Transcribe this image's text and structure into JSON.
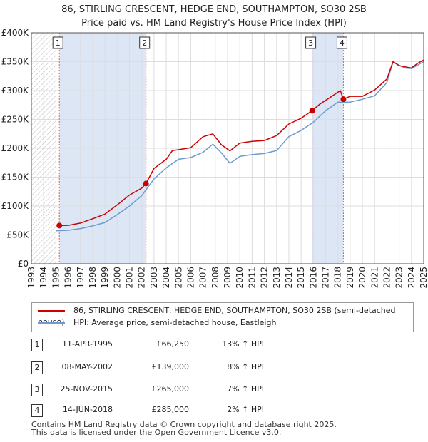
{
  "title": {
    "line1": "86, STIRLING CRESCENT, HEDGE END, SOUTHAMPTON, SO30 2SB",
    "line2": "Price paid vs. HM Land Registry's House Price Index (HPI)"
  },
  "chart_data": {
    "type": "line",
    "title": "86, STIRLING CRESCENT, HEDGE END, SOUTHAMPTON, SO30 2SB — Price paid vs. HM Land Registry's House Price Index (HPI)",
    "xlim": [
      1993.0,
      2025.0
    ],
    "ylim": [
      0,
      400000
    ],
    "x_ticks": [
      "1993",
      "1994",
      "1995",
      "1996",
      "1997",
      "1998",
      "1999",
      "2000",
      "2001",
      "2002",
      "2003",
      "2004",
      "2005",
      "2006",
      "2007",
      "2008",
      "2009",
      "2010",
      "2011",
      "2012",
      "2013",
      "2014",
      "2015",
      "2016",
      "2017",
      "2018",
      "2019",
      "2020",
      "2021",
      "2022",
      "2023",
      "2024",
      "2025"
    ],
    "y_ticks": [
      {
        "value": 0,
        "label": "£0"
      },
      {
        "value": 50000,
        "label": "£50K"
      },
      {
        "value": 100000,
        "label": "£100K"
      },
      {
        "value": 150000,
        "label": "£150K"
      },
      {
        "value": 200000,
        "label": "£200K"
      },
      {
        "value": 250000,
        "label": "£250K"
      },
      {
        "value": 300000,
        "label": "£300K"
      },
      {
        "value": 350000,
        "label": "£350K"
      },
      {
        "value": 400000,
        "label": "£400K"
      }
    ],
    "grid": true,
    "colors": {
      "property": "#cc0000",
      "hpi": "#6d9bd0",
      "band": "#dce6f5",
      "marker_line": "#e06060",
      "grid": "#dddddd"
    },
    "shaded_ranges": [
      [
        1995.28,
        2002.35
      ],
      [
        2015.9,
        2018.45
      ]
    ],
    "hatched_range": [
      1993.0,
      1995.0
    ],
    "series": [
      {
        "name": "86, STIRLING CRESCENT, HEDGE END, SOUTHAMPTON, SO30 2SB (semi-detached house)",
        "color": "#cc0000",
        "x": [
          1995.28,
          1996.0,
          1997.0,
          1998.0,
          1999.0,
          2000.0,
          2001.0,
          2002.0,
          2002.35,
          2003.0,
          2004.0,
          2004.5,
          2005.0,
          2006.0,
          2007.0,
          2007.8,
          2008.5,
          2009.2,
          2010.0,
          2011.0,
          2012.0,
          2013.0,
          2014.0,
          2015.0,
          2015.9,
          2016.5,
          2017.5,
          2018.2,
          2018.45,
          2019.0,
          2020.0,
          2021.0,
          2022.0,
          2022.5,
          2023.0,
          2023.5,
          2024.0,
          2024.5,
          2025.0
        ],
        "y": [
          66250,
          66500,
          70500,
          78000,
          86000,
          102000,
          119000,
          131000,
          139000,
          165000,
          181000,
          196000,
          197500,
          201000,
          220000,
          225000,
          206000,
          195500,
          209000,
          212000,
          213500,
          222000,
          242000,
          252000,
          265000,
          276000,
          290000,
          300000,
          285000,
          290000,
          290000,
          301000,
          320000,
          350000,
          343000,
          341000,
          339000,
          347000,
          353000
        ]
      },
      {
        "name": "HPI: Average price, semi-detached house, Eastleigh",
        "color": "#6d9bd0",
        "x": [
          1995.0,
          1996.0,
          1997.0,
          1998.0,
          1999.0,
          2000.0,
          2001.0,
          2002.0,
          2003.0,
          2004.0,
          2005.0,
          2006.0,
          2007.0,
          2007.8,
          2008.5,
          2009.2,
          2010.0,
          2011.0,
          2012.0,
          2013.0,
          2014.0,
          2015.0,
          2016.0,
          2017.0,
          2018.0,
          2019.0,
          2020.0,
          2021.0,
          2022.0,
          2022.5,
          2023.0,
          2023.5,
          2024.0,
          2024.5,
          2025.0
        ],
        "y": [
          57000,
          58000,
          61000,
          65500,
          71500,
          85000,
          100000,
          118000,
          147000,
          166000,
          181000,
          184000,
          193000,
          207000,
          192000,
          174000,
          186000,
          189000,
          191000,
          196000,
          220000,
          231000,
          245000,
          265000,
          280000,
          280000,
          285000,
          291000,
          314000,
          350000,
          344000,
          339000,
          338000,
          344000,
          350000
        ]
      }
    ],
    "transactions": [
      {
        "num": "1",
        "x": 1995.28,
        "price": 66250
      },
      {
        "num": "2",
        "x": 2002.35,
        "price": 139000
      },
      {
        "num": "3",
        "x": 2015.9,
        "price": 265000
      },
      {
        "num": "4",
        "x": 2018.45,
        "price": 285000
      }
    ]
  },
  "legend": {
    "property_label": "86, STIRLING CRESCENT, HEDGE END, SOUTHAMPTON, SO30 2SB (semi-detached house)",
    "hpi_label": "HPI: Average price, semi-detached house, Eastleigh"
  },
  "transactions_table": [
    {
      "num": "1",
      "date": "11-APR-1995",
      "price": "£66,250",
      "hpi": "13% ↑ HPI"
    },
    {
      "num": "2",
      "date": "08-MAY-2002",
      "price": "£139,000",
      "hpi": "8% ↑ HPI"
    },
    {
      "num": "3",
      "date": "25-NOV-2015",
      "price": "£265,000",
      "hpi": "7% ↑ HPI"
    },
    {
      "num": "4",
      "date": "14-JUN-2018",
      "price": "£285,000",
      "hpi": "2% ↑ HPI"
    }
  ],
  "footer": {
    "line1": "Contains HM Land Registry data © Crown copyright and database right 2025.",
    "line2": "This data is licensed under the Open Government Licence v3.0."
  }
}
